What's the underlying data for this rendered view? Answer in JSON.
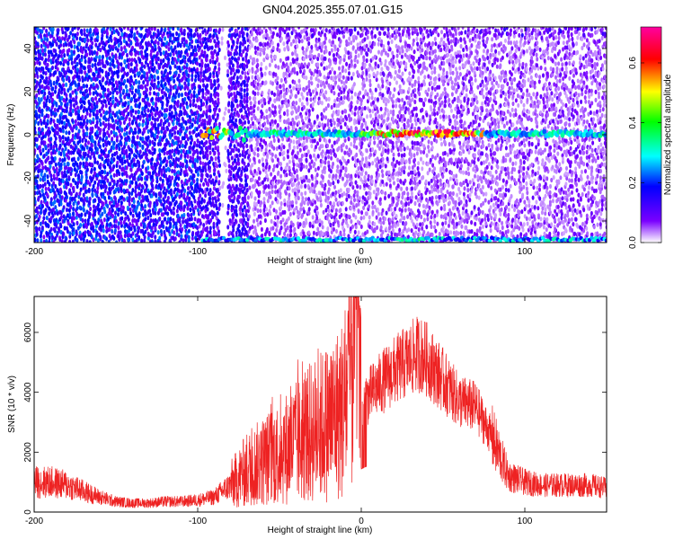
{
  "title": "GN04.2025.355.07.01.G15",
  "chart_data": [
    {
      "type": "heatmap",
      "title": "GN04.2025.355.07.01.G15",
      "xlabel": "Height of straight line (km)",
      "ylabel": "Frequency (Hz)",
      "xlim": [
        -200,
        150
      ],
      "ylim": [
        -50,
        50
      ],
      "x_ticks": [
        -200,
        -100,
        0,
        100
      ],
      "y_ticks": [
        -40,
        -20,
        0,
        20,
        40
      ],
      "colorbar": {
        "label": "Normalized spectral amplitude",
        "range": [
          0,
          0.72
        ],
        "ticks": [
          0,
          0.2,
          0.4,
          0.6
        ],
        "tick_labels": [
          "0.0",
          "0.2",
          "0.4",
          "0.6"
        ],
        "colors": [
          "#ffffff",
          "#7a00ff",
          "#0000ff",
          "#00ffff",
          "#00ff00",
          "#ffff00",
          "#ff0000",
          "#ff00a0"
        ]
      },
      "features": [
        {
          "description": "strong ridge near 0 Hz",
          "x_range": [
            -97,
            150
          ],
          "y": 0.5,
          "peak_amplitude": 0.7
        },
        {
          "description": "aliased ridge near -50 Hz",
          "x_range": [
            -97,
            150
          ],
          "y": -48.5,
          "peak_amplitude": 0.4
        },
        {
          "description": "low-amplitude gap",
          "x_range": [
            -87,
            -83
          ]
        }
      ]
    },
    {
      "type": "line",
      "xlabel": "Height of straight line (km)",
      "ylabel": "SNR (10 * v/v)",
      "xlim": [
        -200,
        150
      ],
      "ylim": [
        0,
        7200
      ],
      "x_ticks": [
        -200,
        -100,
        0,
        100
      ],
      "y_ticks": [
        0,
        2000,
        4000,
        6000
      ],
      "color": "#ee2222",
      "series": [
        {
          "x": [
            -200,
            -190,
            -180,
            -170,
            -160,
            -150,
            -140,
            -130,
            -120,
            -110,
            -100,
            -90,
            -80,
            -70,
            -60,
            -50,
            -40,
            -30,
            -20,
            -10,
            -2,
            0,
            10,
            20,
            30,
            35,
            40,
            50,
            60,
            70,
            80,
            90,
            100,
            110,
            120,
            130,
            140,
            150
          ],
          "values": [
            1000,
            1000,
            900,
            700,
            500,
            350,
            300,
            300,
            350,
            350,
            400,
            500,
            900,
            1400,
            1700,
            2000,
            2300,
            2700,
            3000,
            3500,
            6500,
            3600,
            4200,
            4700,
            5100,
            5300,
            5100,
            4400,
            3700,
            3500,
            2500,
            1200,
            1000,
            900,
            900,
            900,
            900,
            800
          ]
        }
      ]
    }
  ]
}
